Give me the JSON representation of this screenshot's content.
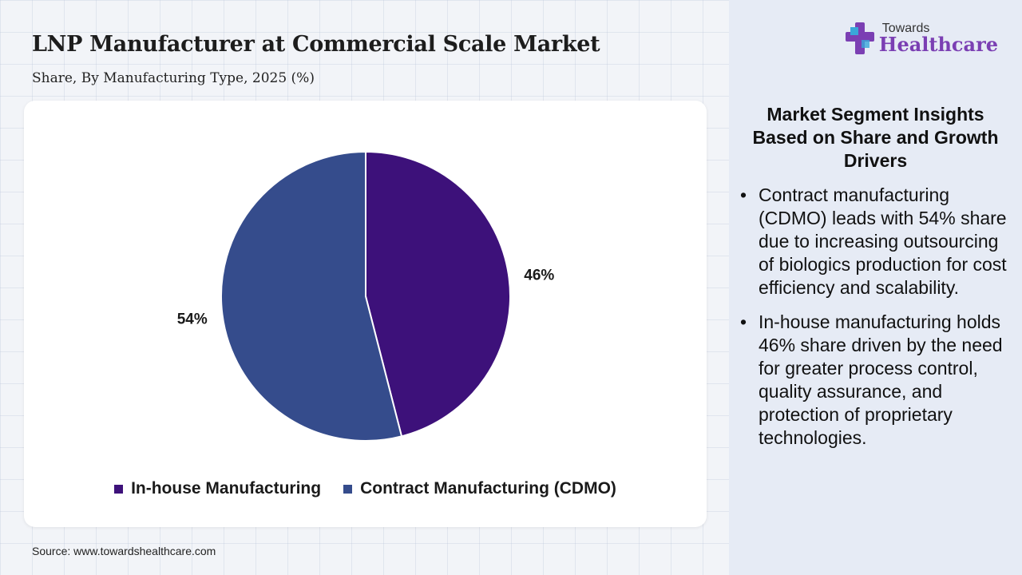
{
  "header": {
    "title": "LNP Manufacturer at Commercial Scale Market",
    "subtitle": "Share, By Manufacturing Type, 2025 (%)"
  },
  "chart_data": {
    "type": "pie",
    "title": "LNP Manufacturer at Commercial Scale Market",
    "subtitle": "Share, By Manufacturing Type, 2025 (%)",
    "categories": [
      "In-house Manufacturing",
      "Contract Manufacturing (CDMO)"
    ],
    "values": [
      46,
      54
    ],
    "labels": [
      "46%",
      "54%"
    ],
    "colors": [
      "#3d117a",
      "#354c8c"
    ],
    "legend_position": "bottom"
  },
  "source": "Source: www.towardshealthcare.com",
  "logo": {
    "top": "Towards",
    "bottom": "Healthcare"
  },
  "panel": {
    "heading": "Market Segment Insights Based on Share and Growth Drivers",
    "insights": [
      "Contract manufacturing (CDMO) leads with 54% share due to increasing outsourcing of biologics production for cost efficiency and scalability.",
      "In-house manufacturing holds 46% share driven by the need for greater process control, quality assurance, and protection of proprietary technologies."
    ]
  }
}
